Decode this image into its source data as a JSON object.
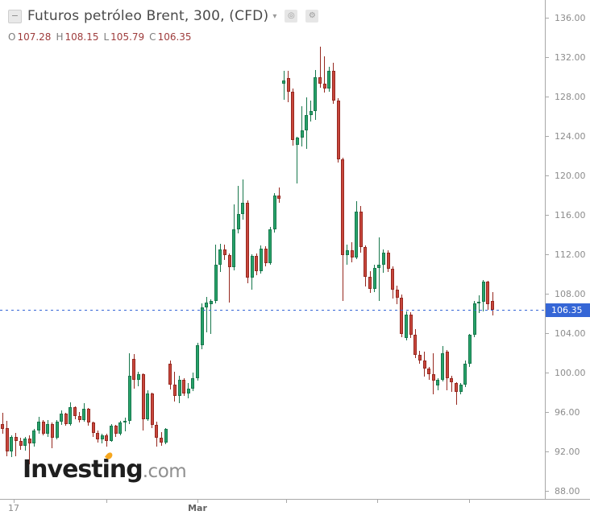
{
  "header": {
    "collapse_glyph": "−",
    "title": "Futuros petróleo Brent, 300, (CFD)",
    "caret_glyph": "▾",
    "eye_glyph": "◎",
    "gear_glyph": "⚙",
    "ohlc": {
      "o_label": "O",
      "o_value": "107.28",
      "h_label": "H",
      "h_value": "108.15",
      "l_label": "L",
      "l_value": "105.79",
      "c_label": "C",
      "c_value": "106.35"
    }
  },
  "watermark": {
    "brand": "Investing",
    "suffix": ".com"
  },
  "chart_data": {
    "type": "candlestick",
    "title": "Futuros petróleo Brent, 300, (CFD)",
    "instrument": "Futuros petróleo Brent",
    "interval_minutes": "300",
    "contract_type": "CFD",
    "last_price": 106.35,
    "last_price_label": "106.35",
    "last_candle_ohlc": {
      "open": 107.28,
      "high": 108.15,
      "low": 105.79,
      "close": 106.35
    },
    "y_axis": {
      "min": 88,
      "max": 137.8,
      "tick_values": [
        136,
        132,
        128,
        124,
        120,
        116,
        112,
        108,
        104,
        100,
        96,
        92,
        88
      ],
      "tick_labels": [
        "136.00",
        "132.00",
        "128.00",
        "124.00",
        "120.00",
        "116.00",
        "112.00",
        "108.00",
        "104.00",
        "100.00",
        "96.00",
        "92.00",
        "88.00"
      ]
    },
    "x_axis": {
      "tick_labels": [
        "17",
        "",
        "Mar",
        "",
        "",
        ""
      ]
    },
    "colors": {
      "up_fill": "#26a269",
      "up_border": "#17774c",
      "down_fill": "#c8463c",
      "down_border": "#96281f",
      "price_line": "#3566d6"
    },
    "candles": [
      [
        94.8,
        95.9,
        93.8,
        94.3
      ],
      [
        94.4,
        95.1,
        91.5,
        92.0
      ],
      [
        92.0,
        93.6,
        91.4,
        93.5
      ],
      [
        93.5,
        93.9,
        91.5,
        93.1
      ],
      [
        93.1,
        93.4,
        92.2,
        92.6
      ],
      [
        92.6,
        93.5,
        92.1,
        93.3
      ],
      [
        93.3,
        93.6,
        90.7,
        92.8
      ],
      [
        92.8,
        94.3,
        92.5,
        94.1
      ],
      [
        94.1,
        95.5,
        93.8,
        95.0
      ],
      [
        95.0,
        95.2,
        93.6,
        93.8
      ],
      [
        93.8,
        95.2,
        93.5,
        94.8
      ],
      [
        94.8,
        94.9,
        92.3,
        93.4
      ],
      [
        93.4,
        95.2,
        93.2,
        95.0
      ],
      [
        95.0,
        96.2,
        94.7,
        95.8
      ],
      [
        95.8,
        95.9,
        94.6,
        94.8
      ],
      [
        94.8,
        97.0,
        94.6,
        96.5
      ],
      [
        96.5,
        96.6,
        95.3,
        95.6
      ],
      [
        95.6,
        96.0,
        94.9,
        95.2
      ],
      [
        95.2,
        96.9,
        95.0,
        96.3
      ],
      [
        96.3,
        96.4,
        94.6,
        94.9
      ],
      [
        94.9,
        95.0,
        93.5,
        93.9
      ],
      [
        93.9,
        94.1,
        92.9,
        93.2
      ],
      [
        93.2,
        93.8,
        92.8,
        93.6
      ],
      [
        93.6,
        93.8,
        92.5,
        93.1
      ],
      [
        93.1,
        94.8,
        93.0,
        94.6
      ],
      [
        94.6,
        94.7,
        93.5,
        93.8
      ],
      [
        93.8,
        95.1,
        93.6,
        94.9
      ],
      [
        94.9,
        95.4,
        94.0,
        95.1
      ],
      [
        95.1,
        102.0,
        94.8,
        99.7
      ],
      [
        101.4,
        101.9,
        98.4,
        99.3
      ],
      [
        99.3,
        100.1,
        98.6,
        99.8
      ],
      [
        99.8,
        99.9,
        94.1,
        95.3
      ],
      [
        95.3,
        98.2,
        95.1,
        97.9
      ],
      [
        97.9,
        98.0,
        94.4,
        94.7
      ],
      [
        94.7,
        95.0,
        92.5,
        93.4
      ],
      [
        93.4,
        94.0,
        92.6,
        92.9
      ],
      [
        92.9,
        94.4,
        92.7,
        94.3
      ],
      [
        100.9,
        101.2,
        98.3,
        98.8
      ],
      [
        98.8,
        100.1,
        97.1,
        97.6
      ],
      [
        97.6,
        99.7,
        96.9,
        99.3
      ],
      [
        99.3,
        99.4,
        97.6,
        97.9
      ],
      [
        97.9,
        98.9,
        97.4,
        98.4
      ],
      [
        98.4,
        100.0,
        98.1,
        99.4
      ],
      [
        99.4,
        103.0,
        99.2,
        102.8
      ],
      [
        102.8,
        107.0,
        102.4,
        106.6
      ],
      [
        106.6,
        107.7,
        104.1,
        107.1
      ],
      [
        106.9,
        107.4,
        103.9,
        107.3
      ],
      [
        107.3,
        113.0,
        107.0,
        110.9
      ],
      [
        110.9,
        113.1,
        110.2,
        112.5
      ],
      [
        112.5,
        113.0,
        111.4,
        111.9
      ],
      [
        111.9,
        112.1,
        107.1,
        110.7
      ],
      [
        110.7,
        117.1,
        110.4,
        114.5
      ],
      [
        114.5,
        118.9,
        114.1,
        116.1
      ],
      [
        116.1,
        119.6,
        115.5,
        117.2
      ],
      [
        117.2,
        117.5,
        109.1,
        109.6
      ],
      [
        109.6,
        112.0,
        108.4,
        111.8
      ],
      [
        111.8,
        112.1,
        109.9,
        110.3
      ],
      [
        110.3,
        112.9,
        110.0,
        112.6
      ],
      [
        112.6,
        112.8,
        110.8,
        111.1
      ],
      [
        111.1,
        114.8,
        110.9,
        114.5
      ],
      [
        114.5,
        118.2,
        114.2,
        118.0
      ],
      [
        118.0,
        118.8,
        117.2,
        117.6
      ],
      [
        129.3,
        130.6,
        127.7,
        129.6
      ],
      [
        129.9,
        130.6,
        127.4,
        128.5
      ],
      [
        128.5,
        128.8,
        123.0,
        123.6
      ],
      [
        123.1,
        123.9,
        119.2,
        123.8
      ],
      [
        123.8,
        127.0,
        122.9,
        124.6
      ],
      [
        124.6,
        127.9,
        122.7,
        126.1
      ],
      [
        126.1,
        127.6,
        125.5,
        126.5
      ],
      [
        126.5,
        130.7,
        125.6,
        130.0
      ],
      [
        130.0,
        133.1,
        128.9,
        129.3
      ],
      [
        129.3,
        132.1,
        128.4,
        128.8
      ],
      [
        128.8,
        131.0,
        128.5,
        130.6
      ],
      [
        130.6,
        131.4,
        127.3,
        127.6
      ],
      [
        127.6,
        127.8,
        121.3,
        121.6
      ],
      [
        121.6,
        121.8,
        107.3,
        111.9
      ],
      [
        111.9,
        113.0,
        110.9,
        112.4
      ],
      [
        112.4,
        113.2,
        111.2,
        111.7
      ],
      [
        111.7,
        117.4,
        111.5,
        116.3
      ],
      [
        116.3,
        116.9,
        112.2,
        112.7
      ],
      [
        112.7,
        112.9,
        108.7,
        109.7
      ],
      [
        109.7,
        110.3,
        108.1,
        108.5
      ],
      [
        108.5,
        110.9,
        108.2,
        110.6
      ],
      [
        110.6,
        113.7,
        107.3,
        110.9
      ],
      [
        110.9,
        112.5,
        110.1,
        112.2
      ],
      [
        112.2,
        112.4,
        110.2,
        110.5
      ],
      [
        110.5,
        110.8,
        107.5,
        108.4
      ],
      [
        108.4,
        108.8,
        106.9,
        107.6
      ],
      [
        107.6,
        107.9,
        103.6,
        103.9
      ],
      [
        103.5,
        106.2,
        103.3,
        105.9
      ],
      [
        105.9,
        106.1,
        103.5,
        103.8
      ],
      [
        103.8,
        104.4,
        101.5,
        101.8
      ],
      [
        101.8,
        102.2,
        100.9,
        101.2
      ],
      [
        101.2,
        102.1,
        99.6,
        100.4
      ],
      [
        100.4,
        100.6,
        99.3,
        99.8
      ],
      [
        99.8,
        102.0,
        97.8,
        99.2
      ],
      [
        98.7,
        99.4,
        98.2,
        99.3
      ],
      [
        99.3,
        102.7,
        99.1,
        102.0
      ],
      [
        102.1,
        102.3,
        98.2,
        99.4
      ],
      [
        99.4,
        99.7,
        98.0,
        99.0
      ],
      [
        98.9,
        99.0,
        96.7,
        98.0
      ],
      [
        98.0,
        98.9,
        97.8,
        98.8
      ],
      [
        98.8,
        101.2,
        98.5,
        100.9
      ],
      [
        100.9,
        103.9,
        100.6,
        103.8
      ],
      [
        103.8,
        107.3,
        103.6,
        107.0
      ],
      [
        107.0,
        107.8,
        106.0,
        107.2
      ],
      [
        107.2,
        109.4,
        106.2,
        109.2
      ],
      [
        109.2,
        109.3,
        106.4,
        106.9
      ],
      [
        107.28,
        108.15,
        105.79,
        106.35
      ]
    ]
  }
}
